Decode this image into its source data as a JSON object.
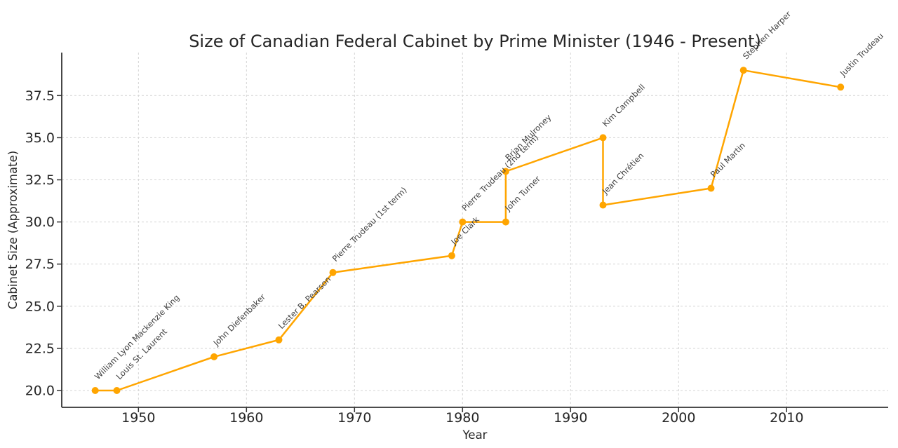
{
  "chart_data": {
    "type": "line",
    "title": "Size of Canadian Federal Cabinet by Prime Minister (1946 - Present)",
    "xlabel": "Year",
    "ylabel": "Cabinet Size (Approximate)",
    "grid": "dashed",
    "legend": "none",
    "xlim": [
      1942.9,
      2019.4
    ],
    "ylim": [
      19.0,
      40.05
    ],
    "x_ticks": [
      1950,
      1960,
      1970,
      1980,
      1990,
      2000,
      2010
    ],
    "y_ticks": [
      20.0,
      22.5,
      25.0,
      27.5,
      30.0,
      32.5,
      35.0,
      37.5
    ],
    "series": [
      {
        "name": "Cabinet size",
        "color": "#FFA500",
        "marker": "circle",
        "points": [
          {
            "year": 1946,
            "cabinet_size": 20,
            "prime_minister": "William Lyon Mackenzie King"
          },
          {
            "year": 1948,
            "cabinet_size": 20,
            "prime_minister": "Louis St. Laurent"
          },
          {
            "year": 1957,
            "cabinet_size": 22,
            "prime_minister": "John Diefenbaker"
          },
          {
            "year": 1963,
            "cabinet_size": 23,
            "prime_minister": "Lester B. Pearson"
          },
          {
            "year": 1968,
            "cabinet_size": 27,
            "prime_minister": "Pierre Trudeau (1st term)"
          },
          {
            "year": 1979,
            "cabinet_size": 28,
            "prime_minister": "Joe Clark"
          },
          {
            "year": 1980,
            "cabinet_size": 30,
            "prime_minister": "Pierre Trudeau (2nd term)"
          },
          {
            "year": 1984,
            "cabinet_size": 30,
            "prime_minister": "John Turner"
          },
          {
            "year": 1984,
            "cabinet_size": 33,
            "prime_minister": "Brian Mulroney"
          },
          {
            "year": 1993,
            "cabinet_size": 35,
            "prime_minister": "Kim Campbell"
          },
          {
            "year": 1993,
            "cabinet_size": 31,
            "prime_minister": "Jean Chrétien"
          },
          {
            "year": 2003,
            "cabinet_size": 32,
            "prime_minister": "Paul Martin"
          },
          {
            "year": 2006,
            "cabinet_size": 39,
            "prime_minister": "Stephen Harper"
          },
          {
            "year": 2015,
            "cabinet_size": 38,
            "prime_minister": "Justin Trudeau"
          }
        ]
      }
    ],
    "colors": {
      "line": "#FFA500",
      "grid": "#d4d4d4",
      "spine": "#333333",
      "tick_text": "#262626",
      "title_text": "#262626",
      "annotation_text": "#404040",
      "background": "#ffffff"
    }
  }
}
